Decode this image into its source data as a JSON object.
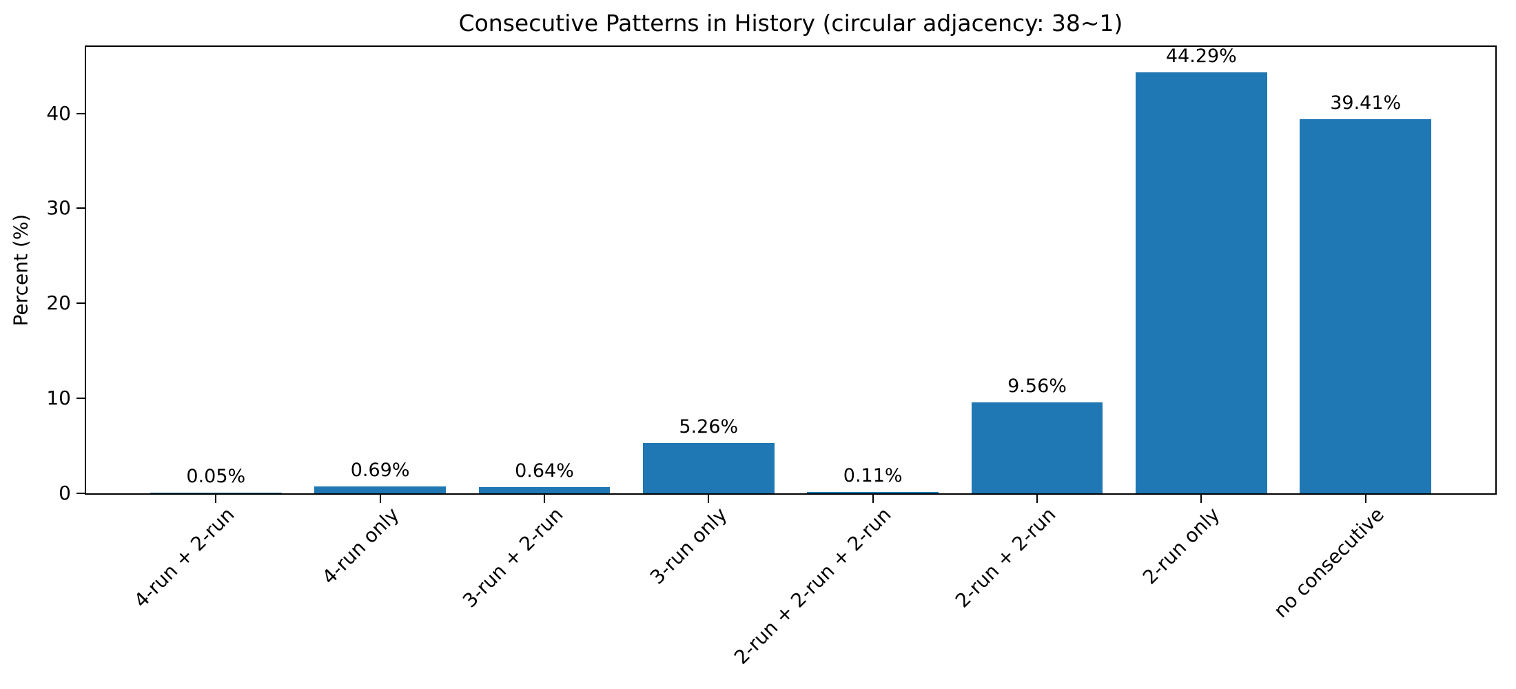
{
  "chart_data": {
    "type": "bar",
    "title": "Consecutive Patterns in History (circular adjacency: 38~1)",
    "xlabel": "",
    "ylabel": "Percent (%)",
    "categories": [
      "4-run + 2-run",
      "4-run only",
      "3-run + 2-run",
      "3-run only",
      "2-run + 2-run + 2-run",
      "2-run + 2-run",
      "2-run only",
      "no consecutive"
    ],
    "values": [
      0.05,
      0.69,
      0.64,
      5.26,
      0.11,
      9.56,
      44.29,
      39.41
    ],
    "value_labels": [
      "0.05%",
      "0.69%",
      "0.64%",
      "5.26%",
      "0.11%",
      "9.56%",
      "44.29%",
      "39.41%"
    ],
    "yticks": [
      0,
      10,
      20,
      30,
      40
    ],
    "ylim": [
      0,
      47.0
    ],
    "bar_color": "#1f77b4",
    "axis_color": "#000000",
    "background_color": "#ffffff",
    "grid": false,
    "legend_position": "none",
    "x_tick_rotation_deg": 45
  }
}
